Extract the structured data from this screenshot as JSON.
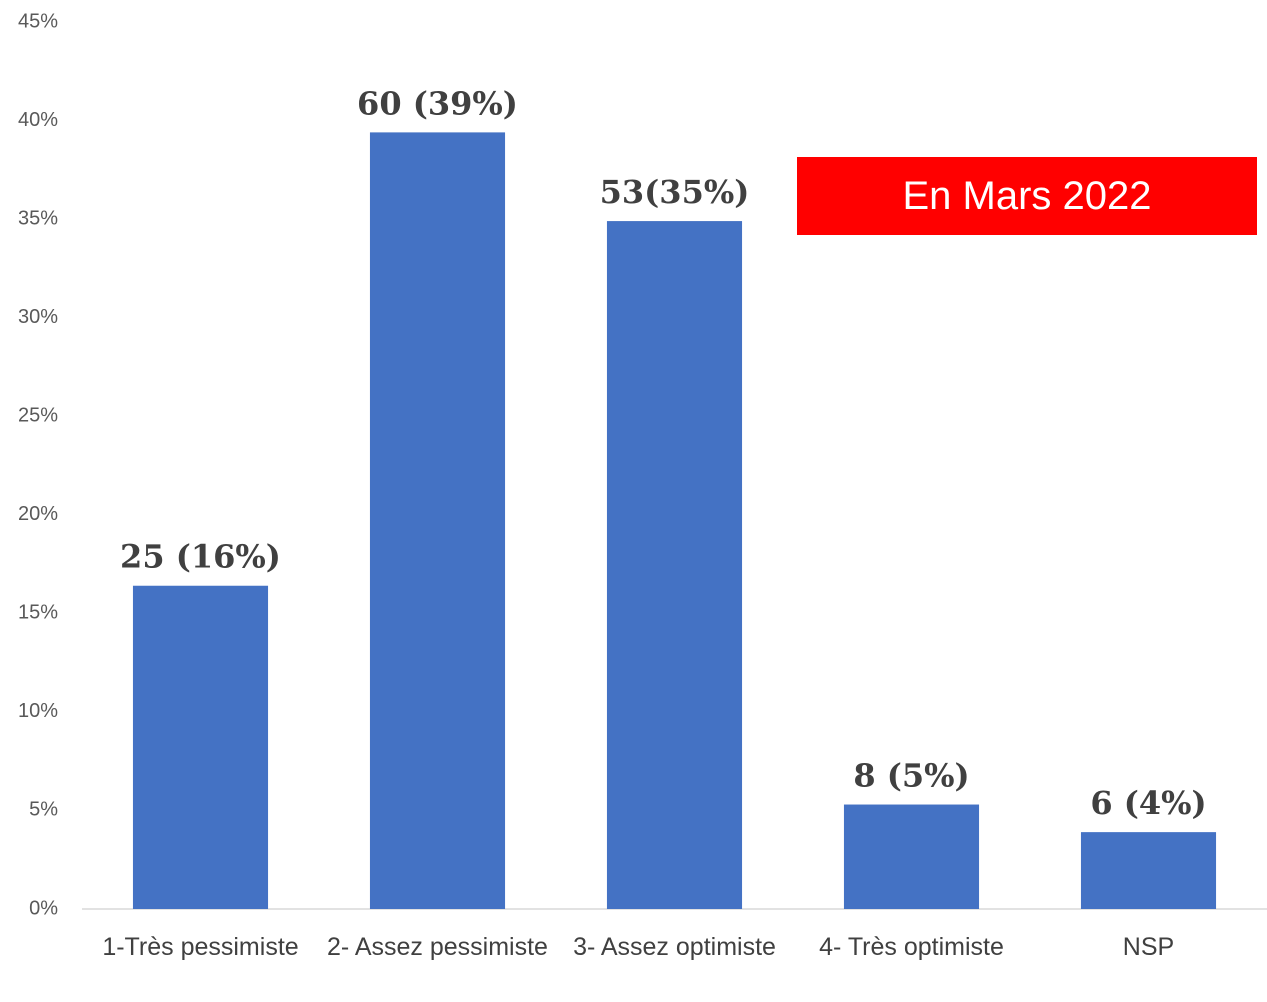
{
  "chart_data": {
    "type": "bar",
    "categories": [
      "1-Très pessimiste",
      "2- Assez pessimiste",
      "3- Assez optimiste",
      "4- Très optimiste",
      "NSP"
    ],
    "values": [
      16.4,
      39.4,
      34.9,
      5.3,
      3.9
    ],
    "value_labels": [
      "25 (16%)",
      "60 (39%)",
      "53(35%)",
      "8 (5%)",
      "6 (4%)"
    ],
    "color": "#4472c4",
    "ylim": [
      0,
      45
    ],
    "yticks": [
      {
        "value": 0,
        "label": "0%"
      },
      {
        "value": 5,
        "label": "5%"
      },
      {
        "value": 10,
        "label": "10%"
      },
      {
        "value": 15,
        "label": "15%"
      },
      {
        "value": 20,
        "label": "20%"
      },
      {
        "value": 25,
        "label": "25%"
      },
      {
        "value": 30,
        "label": "30%"
      },
      {
        "value": 35,
        "label": "35%"
      },
      {
        "value": 40,
        "label": "40%"
      },
      {
        "value": 45,
        "label": "45%"
      }
    ],
    "grid": false,
    "annotation": "En Mars 2022"
  }
}
